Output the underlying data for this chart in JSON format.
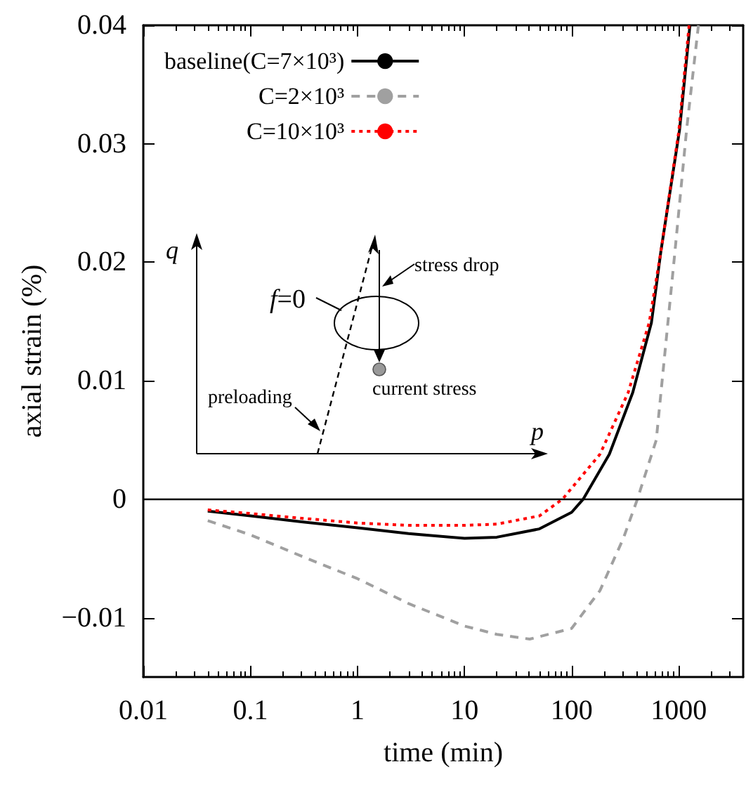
{
  "chart_data": {
    "type": "line",
    "xlabel": "time (min)",
    "ylabel": "axial strain (%)",
    "log": "x",
    "xlim": [
      0.01,
      4000
    ],
    "xticks": [
      0.01,
      0.1,
      1,
      10,
      100,
      1000
    ],
    "ylim": [
      -0.015,
      0.04
    ],
    "yticks": [
      {
        "value": -0.01,
        "label": "−0.01"
      },
      0,
      0.01,
      0.02,
      0.03,
      0.04
    ],
    "grid": false,
    "legend": "top left",
    "marker": "none",
    "ref_lines": [
      {
        "axis": "y",
        "value": 0,
        "color": "#000000",
        "line_style": "solid"
      }
    ],
    "annotations": [
      "q",
      "p",
      "f=0",
      "stress drop",
      "current stress",
      "preloading"
    ],
    "series": [
      {
        "name": "baseline(C=7×10³)",
        "color": "#000000",
        "line_style": "solid",
        "x": [
          0.04,
          0.1,
          0.3,
          1,
          3,
          10,
          20,
          50,
          100,
          128,
          225,
          372,
          556,
          681,
          1019,
          1273
        ],
        "values": [
          -0.001,
          -0.0014,
          -0.0019,
          -0.0024,
          -0.0029,
          -0.0033,
          -0.0032,
          -0.0025,
          -0.0011,
          0,
          0.0038,
          0.009,
          0.0149,
          0.0209,
          0.0312,
          0.04
        ]
      },
      {
        "name": "C=2×10³",
        "color": "#a0a0a0",
        "line_style": "dashed",
        "x": [
          0.04,
          0.1,
          0.3,
          1,
          3,
          10,
          20,
          40.6,
          100,
          184,
          304,
          411,
          617,
          922,
          1185,
          1528
        ],
        "values": [
          -0.0018,
          -0.003,
          -0.0048,
          -0.0067,
          -0.0088,
          -0.0107,
          -0.0114,
          -0.0118,
          -0.0109,
          -0.0077,
          -0.0033,
          0,
          0.005,
          0.0209,
          0.0312,
          0.04
        ]
      },
      {
        "name": "C=10×10³",
        "color": "#ff0000",
        "line_style": "dotted",
        "x": [
          0.04,
          0.1,
          0.3,
          1,
          3,
          10,
          20,
          50,
          82,
          184,
          337,
          530,
          681,
          1000,
          1250
        ],
        "values": [
          -0.0009,
          -0.0012,
          -0.0016,
          -0.002,
          -0.0022,
          -0.0022,
          -0.0021,
          -0.0014,
          0,
          0.0038,
          0.009,
          0.0149,
          0.0209,
          0.031,
          0.04
        ]
      }
    ]
  }
}
